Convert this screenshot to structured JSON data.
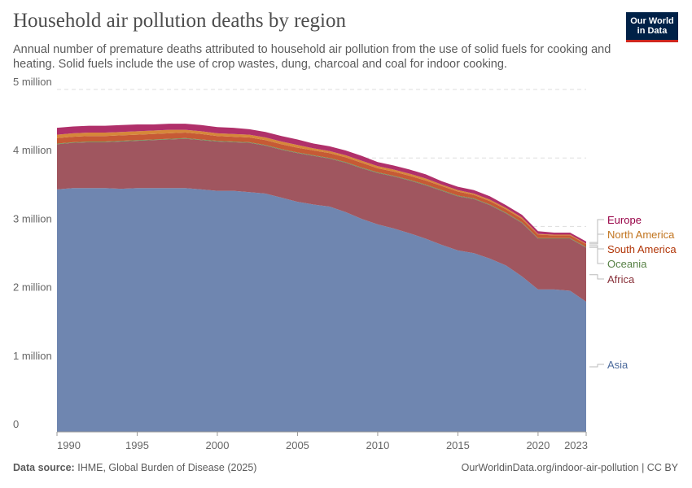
{
  "header": {
    "title": "Household air pollution deaths by region",
    "subtitle": "Annual number of premature deaths attributed to household air pollution from the use of solid fuels for cooking and heating. Solid fuels include the use of crop wastes, dung, charcoal and coal for indoor cooking.",
    "logo": "Our World in Data"
  },
  "footer": {
    "source_label": "Data source:",
    "source": "IHME, Global Burden of Disease (2025)",
    "link": "OurWorldinData.org/indoor-air-pollution | CC BY"
  },
  "chart_data": {
    "type": "area",
    "stacked": true,
    "title": "Household air pollution deaths by region",
    "xlim": [
      1990,
      2023
    ],
    "ylim": [
      0,
      5000000
    ],
    "grid": "horizontal dashed",
    "legend": "right, inline labels",
    "x_ticks": [
      "1990",
      "1995",
      "2000",
      "2005",
      "2010",
      "2015",
      "2020",
      "2023"
    ],
    "y_ticks": [
      {
        "v": 0,
        "label": "0"
      },
      {
        "v": 1000000,
        "label": "1 million"
      },
      {
        "v": 2000000,
        "label": "2 million"
      },
      {
        "v": 3000000,
        "label": "3 million"
      },
      {
        "v": 4000000,
        "label": "4 million"
      },
      {
        "v": 5000000,
        "label": "5 million"
      }
    ],
    "x": [
      1990,
      1991,
      1992,
      1993,
      1994,
      1995,
      1996,
      1997,
      1998,
      1999,
      2000,
      2001,
      2002,
      2003,
      2004,
      2005,
      2006,
      2007,
      2008,
      2009,
      2010,
      2011,
      2012,
      2013,
      2014,
      2015,
      2016,
      2017,
      2018,
      2019,
      2020,
      2021,
      2022,
      2023
    ],
    "unit_multiplier": 1000000,
    "series": [
      {
        "name": "Asia",
        "color": "#6f86b0",
        "label_color": "#4c6a9c",
        "values": [
          3.54,
          3.56,
          3.56,
          3.56,
          3.55,
          3.56,
          3.56,
          3.56,
          3.56,
          3.54,
          3.52,
          3.52,
          3.5,
          3.48,
          3.42,
          3.36,
          3.32,
          3.29,
          3.21,
          3.11,
          3.03,
          2.97,
          2.9,
          2.82,
          2.73,
          2.65,
          2.61,
          2.53,
          2.43,
          2.27,
          2.08,
          2.08,
          2.06,
          1.9
        ]
      },
      {
        "name": "Africa",
        "color": "#a0565f",
        "label_color": "#883039",
        "values": [
          0.66,
          0.66,
          0.67,
          0.67,
          0.69,
          0.69,
          0.7,
          0.71,
          0.72,
          0.72,
          0.72,
          0.71,
          0.72,
          0.7,
          0.7,
          0.71,
          0.71,
          0.7,
          0.72,
          0.74,
          0.75,
          0.76,
          0.77,
          0.78,
          0.79,
          0.79,
          0.79,
          0.78,
          0.76,
          0.78,
          0.74,
          0.74,
          0.76,
          0.79
        ]
      },
      {
        "name": "Oceania",
        "color": "#6f8f57",
        "label_color": "#578145",
        "values": [
          0.01,
          0.01,
          0.01,
          0.01,
          0.01,
          0.01,
          0.01,
          0.01,
          0.01,
          0.01,
          0.01,
          0.01,
          0.01,
          0.01,
          0.01,
          0.01,
          0.01,
          0.01,
          0.01,
          0.01,
          0.01,
          0.01,
          0.01,
          0.01,
          0.01,
          0.01,
          0.01,
          0.01,
          0.01,
          0.01,
          0.01,
          0.01,
          0.01,
          0.01
        ]
      },
      {
        "name": "South America",
        "color": "#c65a35",
        "label_color": "#b13507",
        "values": [
          0.08,
          0.08,
          0.08,
          0.08,
          0.08,
          0.08,
          0.08,
          0.08,
          0.08,
          0.08,
          0.07,
          0.07,
          0.07,
          0.07,
          0.07,
          0.07,
          0.07,
          0.07,
          0.07,
          0.07,
          0.06,
          0.06,
          0.06,
          0.06,
          0.06,
          0.06,
          0.05,
          0.05,
          0.05,
          0.05,
          0.05,
          0.04,
          0.04,
          0.04
        ]
      },
      {
        "name": "North America",
        "color": "#d6873a",
        "label_color": "#c1741e",
        "values": [
          0.05,
          0.05,
          0.05,
          0.05,
          0.05,
          0.05,
          0.05,
          0.05,
          0.04,
          0.04,
          0.04,
          0.04,
          0.04,
          0.04,
          0.04,
          0.04,
          0.03,
          0.03,
          0.03,
          0.03,
          0.03,
          0.03,
          0.03,
          0.03,
          0.02,
          0.02,
          0.02,
          0.02,
          0.02,
          0.02,
          0.01,
          0.01,
          0.01,
          0.01
        ]
      },
      {
        "name": "Europe",
        "color": "#b0306a",
        "label_color": "#970046",
        "values": [
          0.1,
          0.1,
          0.1,
          0.1,
          0.1,
          0.1,
          0.09,
          0.09,
          0.09,
          0.09,
          0.09,
          0.09,
          0.08,
          0.08,
          0.08,
          0.08,
          0.07,
          0.07,
          0.07,
          0.07,
          0.06,
          0.06,
          0.06,
          0.06,
          0.05,
          0.05,
          0.05,
          0.05,
          0.04,
          0.04,
          0.04,
          0.03,
          0.03,
          0.03
        ]
      }
    ]
  }
}
